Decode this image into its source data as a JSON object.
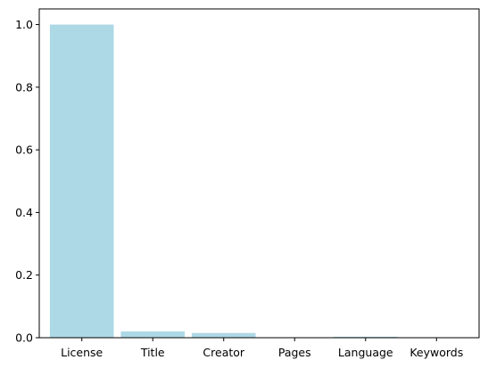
{
  "chart_data": {
    "type": "bar",
    "title": "",
    "xlabel": "",
    "ylabel": "",
    "categories": [
      "License",
      "Title",
      "Creator",
      "Pages",
      "Language",
      "Keywords"
    ],
    "values": [
      1.0,
      0.02,
      0.015,
      0.0,
      0.003,
      0.0
    ],
    "ylim": [
      0,
      1.05
    ],
    "yticks": [
      0.0,
      0.2,
      0.4,
      0.6,
      0.8,
      1.0
    ],
    "ytick_labels": [
      "0.0",
      "0.2",
      "0.4",
      "0.6",
      "0.8",
      "1.0"
    ],
    "grid": false,
    "bar_color": "#add8e6",
    "axis_color": "#000000"
  }
}
